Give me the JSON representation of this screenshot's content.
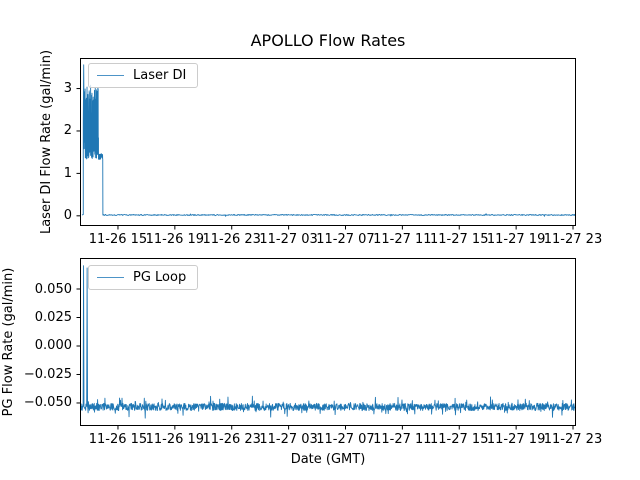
{
  "figure": {
    "background": "#ffffff",
    "text_color": "#000000",
    "spine_color": "#000000",
    "accent_color": "#1f77b4",
    "legend_border_color": "#cccccc"
  },
  "chart_data": [
    {
      "type": "line",
      "title": "APOLLO Flow Rates",
      "ylabel": "Laser DI Flow Rate (gal/min)",
      "xlabel": "",
      "legend_position": "upper left",
      "grid": false,
      "xlim": [
        0,
        34.88
      ],
      "ylim": [
        -0.24,
        3.72
      ],
      "xtick_hours": [
        2.67,
        6.67,
        10.67,
        14.67,
        18.67,
        22.67,
        26.67,
        30.67,
        34.67
      ],
      "xticklabels": [
        "11-26 15",
        "11-26 19",
        "11-26 23",
        "11-27 03",
        "11-27 07",
        "11-27 11",
        "11-27 15",
        "11-27 19",
        "11-27 23"
      ],
      "yticks": [
        {
          "value": 0,
          "label": "0"
        },
        {
          "value": 1,
          "label": "1"
        },
        {
          "value": 2,
          "label": "2"
        },
        {
          "value": 3,
          "label": "3"
        }
      ],
      "series": [
        {
          "name": "Laser DI",
          "color": "#1f77b4",
          "summary": "Flow near 0 gal/min except a burst ~11-26 13:15 to 11-26 14:35 oscillating 1.3-3.0 with initial peak 3.56, then flat ~0.02 for the rest of the range",
          "segments": [
            {
              "type": "points",
              "pts": [
                [
                  0.14,
                  0.02
                ],
                [
                  0.23,
                  0.03
                ]
              ]
            },
            {
              "type": "vspike",
              "h": 0.26,
              "peak": 3.56,
              "base": 2.2
            },
            {
              "type": "telegraph",
              "h0": 0.28,
              "h1": 1.3,
              "n": 130,
              "low": [
                1.34,
                1.62
              ],
              "high": [
                1.72,
                2.92
              ],
              "high_prob": 0.58,
              "tall": [
                2.92,
                3.1
              ],
              "tall_prob": 0.06
            },
            {
              "type": "band",
              "h0": 1.3,
              "h1": 1.6,
              "n": 45,
              "center": 1.4,
              "amp": 0.07
            },
            {
              "type": "points",
              "pts": [
                [
                  1.61,
                  0.02
                ]
              ]
            },
            {
              "type": "noise",
              "h0": 1.62,
              "h1": 34.88,
              "n": 900,
              "base": 0.02,
              "amp": 0.012,
              "spike_prob": 0.02,
              "spike_amp": 0.03
            }
          ]
        }
      ]
    },
    {
      "type": "line",
      "title": "",
      "ylabel": "PG Flow Rate (gal/min)",
      "xlabel": "Date (GMT)",
      "legend_position": "upper left",
      "grid": false,
      "xlim": [
        0,
        34.88
      ],
      "ylim": [
        -0.0702,
        0.0772
      ],
      "xtick_hours": [
        2.67,
        6.67,
        10.67,
        14.67,
        18.67,
        22.67,
        26.67,
        30.67,
        34.67
      ],
      "xticklabels": [
        "11-26 15",
        "11-26 19",
        "11-26 23",
        "11-27 03",
        "11-27 07",
        "11-27 11",
        "11-27 15",
        "11-27 19",
        "11-27 23"
      ],
      "yticks": [
        {
          "value": 0.05,
          "label": "0.050"
        },
        {
          "value": 0.025,
          "label": "0.025"
        },
        {
          "value": 0.0,
          "label": "0.000"
        },
        {
          "value": -0.025,
          "label": "−0.025"
        },
        {
          "value": -0.05,
          "label": "−0.050"
        }
      ],
      "series": [
        {
          "name": "PG Loop",
          "color": "#1f77b4",
          "summary": "Noisy flow around -0.053 gal/min across full range with two brief positive spikes to ~0.07 near 11-26 13:15 and 11-26 13:30",
          "segments": [
            {
              "type": "noise",
              "h0": 0.02,
              "h1": 0.2,
              "n": 12,
              "base": -0.0535,
              "amp": 0.003,
              "spike_prob": 0,
              "spike_amp": 0
            },
            {
              "type": "vspike",
              "h": 0.25,
              "peak": 0.0705,
              "base": -0.053
            },
            {
              "type": "noise",
              "h0": 0.3,
              "h1": 0.45,
              "n": 10,
              "base": -0.0535,
              "amp": 0.003,
              "spike_prob": 0,
              "spike_amp": 0
            },
            {
              "type": "vspike",
              "h": 0.5,
              "peak": 0.0685,
              "base": -0.053
            },
            {
              "type": "noise",
              "h0": 0.55,
              "h1": 34.88,
              "n": 1600,
              "base": -0.0535,
              "amp": 0.0032,
              "spike_prob": 0.1,
              "spike_amp": 0.007
            }
          ]
        }
      ]
    }
  ]
}
